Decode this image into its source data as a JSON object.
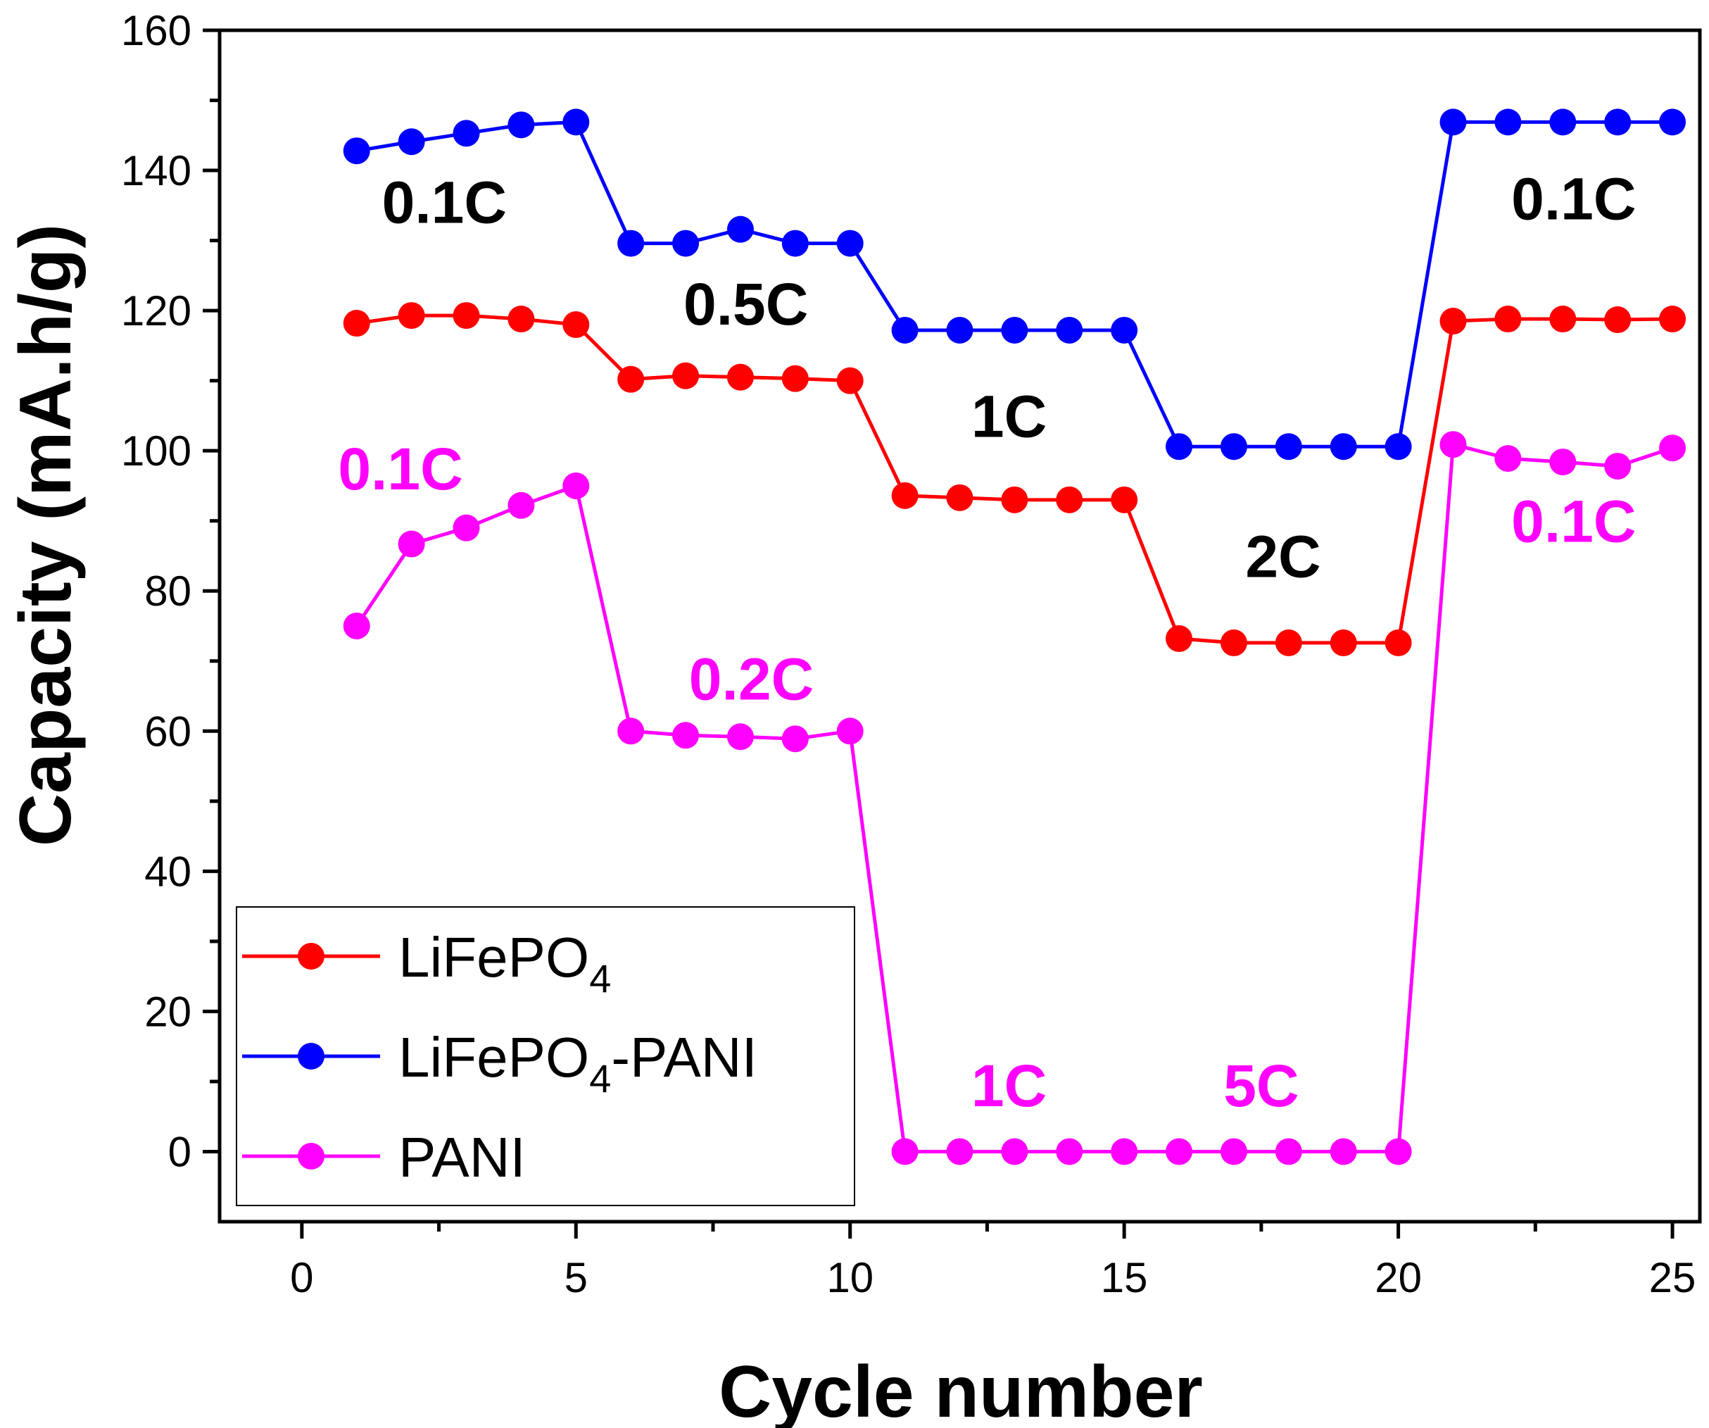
{
  "chart_data": {
    "type": "line",
    "xlabel": "Cycle number",
    "ylabel": "Capacity (mA.h/g)",
    "xlim": [
      -1.5,
      25.5
    ],
    "ylim": [
      -10,
      160
    ],
    "x_ticks": [
      0,
      5,
      10,
      15,
      20,
      25
    ],
    "y_ticks": [
      0,
      20,
      40,
      60,
      80,
      100,
      120,
      140,
      160
    ],
    "x": [
      1,
      2,
      3,
      4,
      5,
      6,
      7,
      8,
      9,
      10,
      11,
      12,
      13,
      14,
      15,
      16,
      17,
      18,
      19,
      20,
      21,
      22,
      23,
      24,
      25
    ],
    "series": [
      {
        "name": "LiFePO4",
        "legend_main": "LiFePO",
        "legend_sub": "4",
        "legend_rest": "",
        "color": "#ff0000",
        "values": [
          118.2,
          119.3,
          119.3,
          118.8,
          118.0,
          110.2,
          110.7,
          110.5,
          110.3,
          110.0,
          93.6,
          93.3,
          93.0,
          93.0,
          93.0,
          73.2,
          72.6,
          72.6,
          72.6,
          72.6,
          118.5,
          118.8,
          118.8,
          118.7,
          118.8
        ]
      },
      {
        "name": "LiFePO4-PANI",
        "legend_main": "LiFePO",
        "legend_sub": "4",
        "legend_rest": "-PANI",
        "color": "#0000ff",
        "values": [
          142.8,
          144.1,
          145.3,
          146.5,
          146.9,
          129.6,
          129.6,
          131.6,
          129.6,
          129.6,
          117.2,
          117.2,
          117.2,
          117.2,
          117.2,
          100.6,
          100.6,
          100.6,
          100.6,
          100.6,
          146.9,
          146.9,
          146.9,
          146.9,
          146.9
        ]
      },
      {
        "name": "PANI",
        "legend_main": "PANI",
        "legend_sub": "",
        "legend_rest": "",
        "color": "#ff00ff",
        "values": [
          75.0,
          86.7,
          89.0,
          92.2,
          95.0,
          60.0,
          59.4,
          59.2,
          58.9,
          60.0,
          0.0,
          0.0,
          0.0,
          0.0,
          0.0,
          0.0,
          0.0,
          0.0,
          0.0,
          0.0,
          100.9,
          98.9,
          98.4,
          97.8,
          100.4
        ]
      }
    ],
    "annotations": [
      {
        "text": "0.1C",
        "x": 2.6,
        "y": 132.5,
        "color": "#000000"
      },
      {
        "text": "0.5C",
        "x": 8.1,
        "y": 118.0,
        "color": "#000000"
      },
      {
        "text": "1C",
        "x": 12.9,
        "y": 102.0,
        "color": "#000000"
      },
      {
        "text": "2C",
        "x": 17.9,
        "y": 82.0,
        "color": "#000000"
      },
      {
        "text": "0.1C",
        "x": 23.2,
        "y": 133.0,
        "color": "#000000"
      },
      {
        "text": "0.1C",
        "x": 1.8,
        "y": 94.5,
        "color": "#ff00ff"
      },
      {
        "text": "0.2C",
        "x": 8.2,
        "y": 64.5,
        "color": "#ff00ff"
      },
      {
        "text": "1C",
        "x": 12.9,
        "y": 6.5,
        "color": "#ff00ff"
      },
      {
        "text": "5C",
        "x": 17.5,
        "y": 6.5,
        "color": "#ff00ff"
      },
      {
        "text": "0.1C",
        "x": 23.2,
        "y": 87.0,
        "color": "#ff00ff"
      }
    ],
    "legend_position": "bottom-left"
  }
}
